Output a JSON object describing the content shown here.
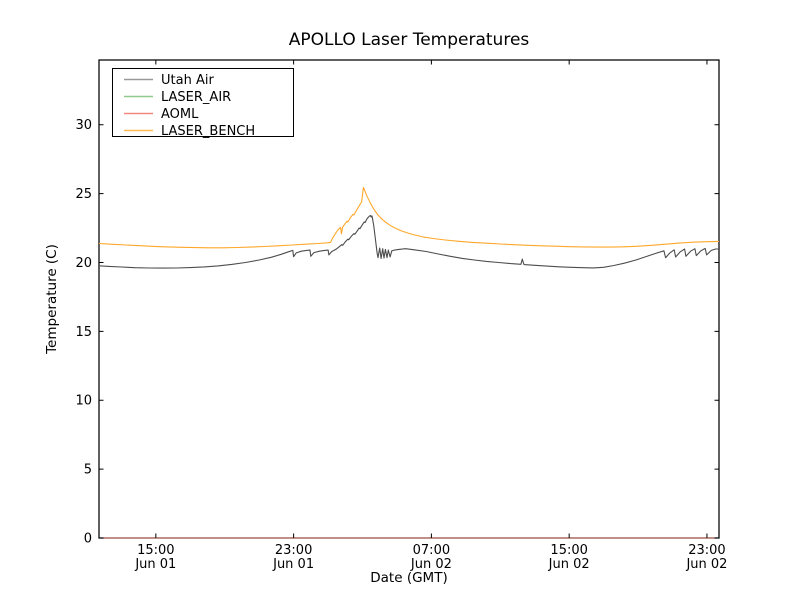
{
  "chart_data": {
    "type": "line",
    "title": "APOLLO Laser Temperatures",
    "xlabel": "Date (GMT)",
    "ylabel": "Temperature (C)",
    "grid": false,
    "legend_position": "upper left",
    "x_unit": "hours since Jun 01 00:00 GMT",
    "xlim": [
      11.7,
      47.7
    ],
    "ylim": [
      0,
      34.7
    ],
    "y_ticks": [
      0,
      5,
      10,
      15,
      20,
      25,
      30
    ],
    "x_ticks": [
      {
        "t": 15,
        "time": "15:00",
        "date": "Jun 01"
      },
      {
        "t": 23,
        "time": "23:00",
        "date": "Jun 01"
      },
      {
        "t": 31,
        "time": "07:00",
        "date": "Jun 02"
      },
      {
        "t": 39,
        "time": "15:00",
        "date": "Jun 02"
      },
      {
        "t": 47,
        "time": "23:00",
        "date": "Jun 02"
      }
    ],
    "series": [
      {
        "name": "Utah Air",
        "color": "#4d4d4d",
        "legend_color": "#999999",
        "opacity": 1,
        "points": [
          [
            11.7,
            19.76
          ],
          [
            12.3,
            19.72
          ],
          [
            13.0,
            19.67
          ],
          [
            13.8,
            19.62
          ],
          [
            14.6,
            19.6
          ],
          [
            15.4,
            19.59
          ],
          [
            16.2,
            19.6
          ],
          [
            17.0,
            19.63
          ],
          [
            17.8,
            19.68
          ],
          [
            18.6,
            19.75
          ],
          [
            19.4,
            19.86
          ],
          [
            20.2,
            20.0
          ],
          [
            21.0,
            20.18
          ],
          [
            21.7,
            20.38
          ],
          [
            22.3,
            20.6
          ],
          [
            22.7,
            20.78
          ],
          [
            22.95,
            20.88
          ],
          [
            23.0,
            20.42
          ],
          [
            23.15,
            20.7
          ],
          [
            23.45,
            20.82
          ],
          [
            23.75,
            20.88
          ],
          [
            23.95,
            20.9
          ],
          [
            24.0,
            20.45
          ],
          [
            24.18,
            20.72
          ],
          [
            24.5,
            20.82
          ],
          [
            24.8,
            20.88
          ],
          [
            25.0,
            20.9
          ],
          [
            25.05,
            20.55
          ],
          [
            25.22,
            20.8
          ],
          [
            25.45,
            20.95
          ],
          [
            25.65,
            21.15
          ],
          [
            25.8,
            21.3
          ],
          [
            25.85,
            21.25
          ],
          [
            26.0,
            21.5
          ],
          [
            26.15,
            21.7
          ],
          [
            26.2,
            21.65
          ],
          [
            26.35,
            21.9
          ],
          [
            26.5,
            22.1
          ],
          [
            26.55,
            22.05
          ],
          [
            26.7,
            22.3
          ],
          [
            26.8,
            22.5
          ],
          [
            26.85,
            22.45
          ],
          [
            27.0,
            22.75
          ],
          [
            27.1,
            22.95
          ],
          [
            27.15,
            22.9
          ],
          [
            27.25,
            23.15
          ],
          [
            27.35,
            23.3
          ],
          [
            27.45,
            23.42
          ],
          [
            27.5,
            23.3
          ],
          [
            27.55,
            23.38
          ],
          [
            27.65,
            22.7
          ],
          [
            27.75,
            21.7
          ],
          [
            27.85,
            20.7
          ],
          [
            27.9,
            20.35
          ],
          [
            28.0,
            21.05
          ],
          [
            28.08,
            20.3
          ],
          [
            28.17,
            21.0
          ],
          [
            28.25,
            20.32
          ],
          [
            28.33,
            20.95
          ],
          [
            28.42,
            20.35
          ],
          [
            28.5,
            20.9
          ],
          [
            28.6,
            20.4
          ],
          [
            28.7,
            20.85
          ],
          [
            28.85,
            20.9
          ],
          [
            29.1,
            20.95
          ],
          [
            29.5,
            21.0
          ],
          [
            30.0,
            20.92
          ],
          [
            30.7,
            20.8
          ],
          [
            31.4,
            20.62
          ],
          [
            32.1,
            20.45
          ],
          [
            32.8,
            20.3
          ],
          [
            33.5,
            20.18
          ],
          [
            34.2,
            20.08
          ],
          [
            34.9,
            20.0
          ],
          [
            35.6,
            19.92
          ],
          [
            36.2,
            19.87
          ],
          [
            36.28,
            20.25
          ],
          [
            36.38,
            19.85
          ],
          [
            37.0,
            19.8
          ],
          [
            37.7,
            19.74
          ],
          [
            38.4,
            19.69
          ],
          [
            39.1,
            19.65
          ],
          [
            39.8,
            19.62
          ],
          [
            40.4,
            19.61
          ],
          [
            41.0,
            19.65
          ],
          [
            41.6,
            19.78
          ],
          [
            42.2,
            19.95
          ],
          [
            42.8,
            20.15
          ],
          [
            43.4,
            20.4
          ],
          [
            44.0,
            20.65
          ],
          [
            44.5,
            20.85
          ],
          [
            44.6,
            20.35
          ],
          [
            44.85,
            20.7
          ],
          [
            45.1,
            20.92
          ],
          [
            45.18,
            20.4
          ],
          [
            45.45,
            20.78
          ],
          [
            45.7,
            20.98
          ],
          [
            45.78,
            20.45
          ],
          [
            46.05,
            20.82
          ],
          [
            46.3,
            21.0
          ],
          [
            46.38,
            20.5
          ],
          [
            46.65,
            20.85
          ],
          [
            46.9,
            21.02
          ],
          [
            46.98,
            20.55
          ],
          [
            47.25,
            20.88
          ],
          [
            47.5,
            20.98
          ],
          [
            47.7,
            20.98
          ]
        ]
      },
      {
        "name": "LASER_AIR",
        "color": "#7cbf7c",
        "legend_color": "#8fca8f",
        "opacity": 0.55,
        "points": [
          [
            11.7,
            0.0
          ],
          [
            47.7,
            0.0
          ]
        ]
      },
      {
        "name": "AOML",
        "color": "#e05c50",
        "legend_color": "#f1887f",
        "opacity": 0.8,
        "points": [
          [
            11.7,
            0.0
          ],
          [
            47.7,
            0.0
          ]
        ]
      },
      {
        "name": "LASER_BENCH",
        "color": "#ffa72b",
        "legend_color": "#ffbb55",
        "opacity": 1,
        "points": [
          [
            11.7,
            21.38
          ],
          [
            12.5,
            21.32
          ],
          [
            13.3,
            21.27
          ],
          [
            14.1,
            21.22
          ],
          [
            14.9,
            21.17
          ],
          [
            15.7,
            21.13
          ],
          [
            16.5,
            21.1
          ],
          [
            17.3,
            21.08
          ],
          [
            18.1,
            21.07
          ],
          [
            18.9,
            21.07
          ],
          [
            19.7,
            21.09
          ],
          [
            20.5,
            21.12
          ],
          [
            21.3,
            21.16
          ],
          [
            22.1,
            21.21
          ],
          [
            22.9,
            21.27
          ],
          [
            23.7,
            21.33
          ],
          [
            24.4,
            21.38
          ],
          [
            24.9,
            21.42
          ],
          [
            25.14,
            21.46
          ],
          [
            25.3,
            21.85
          ],
          [
            25.45,
            22.15
          ],
          [
            25.6,
            22.4
          ],
          [
            25.72,
            22.55
          ],
          [
            25.78,
            22.08
          ],
          [
            25.84,
            22.55
          ],
          [
            25.95,
            22.75
          ],
          [
            26.1,
            23.0
          ],
          [
            26.15,
            22.95
          ],
          [
            26.3,
            23.25
          ],
          [
            26.45,
            23.5
          ],
          [
            26.5,
            23.45
          ],
          [
            26.65,
            23.78
          ],
          [
            26.8,
            24.1
          ],
          [
            26.95,
            24.4
          ],
          [
            27.0,
            24.9
          ],
          [
            27.05,
            25.45
          ],
          [
            27.12,
            25.25
          ],
          [
            27.25,
            24.85
          ],
          [
            27.4,
            24.45
          ],
          [
            27.55,
            24.1
          ],
          [
            27.72,
            23.75
          ],
          [
            27.9,
            23.45
          ],
          [
            28.1,
            23.18
          ],
          [
            28.35,
            22.92
          ],
          [
            28.6,
            22.7
          ],
          [
            28.9,
            22.5
          ],
          [
            29.2,
            22.32
          ],
          [
            29.6,
            22.15
          ],
          [
            30.0,
            22.0
          ],
          [
            30.5,
            21.86
          ],
          [
            31.1,
            21.74
          ],
          [
            31.8,
            21.63
          ],
          [
            32.6,
            21.54
          ],
          [
            33.4,
            21.46
          ],
          [
            34.2,
            21.4
          ],
          [
            35.0,
            21.34
          ],
          [
            35.8,
            21.29
          ],
          [
            36.6,
            21.25
          ],
          [
            37.4,
            21.21
          ],
          [
            38.2,
            21.18
          ],
          [
            39.0,
            21.15
          ],
          [
            39.8,
            21.13
          ],
          [
            40.6,
            21.12
          ],
          [
            41.4,
            21.12
          ],
          [
            42.2,
            21.14
          ],
          [
            43.0,
            21.18
          ],
          [
            43.8,
            21.25
          ],
          [
            44.6,
            21.33
          ],
          [
            45.4,
            21.41
          ],
          [
            46.2,
            21.47
          ],
          [
            47.0,
            21.51
          ],
          [
            47.7,
            21.53
          ]
        ]
      }
    ],
    "frame_color": "#000000",
    "background_color": "#ffffff"
  }
}
